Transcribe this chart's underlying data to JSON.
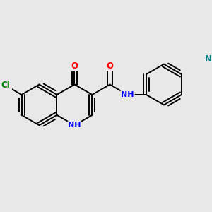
{
  "bg_color": "#e8e8e8",
  "bond_color": "#000000",
  "bond_width": 1.4,
  "atom_colors": {
    "O": "#ff0000",
    "N": "#0000ff",
    "Cl": "#008000",
    "N_cn": "#008080"
  },
  "font_size": 8.5,
  "fig_size": [
    3.0,
    3.0
  ],
  "dpi": 100,
  "xlim": [
    0,
    3.0
  ],
  "ylim": [
    0,
    3.0
  ]
}
